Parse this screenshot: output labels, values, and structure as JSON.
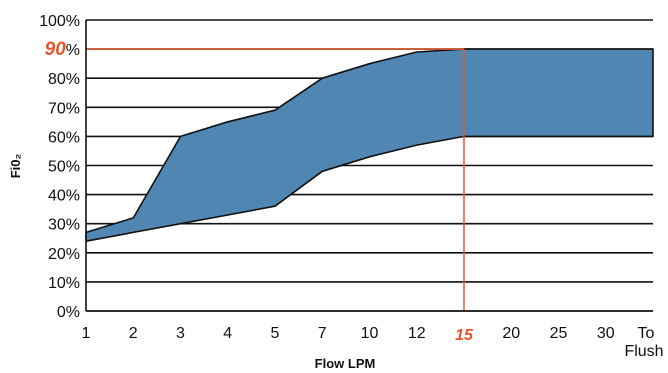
{
  "chart_data": {
    "type": "area",
    "title": "",
    "xlabel": "Flow LPM",
    "ylabel": "Fi0₂",
    "categories": [
      "1",
      "2",
      "3",
      "4",
      "5",
      "7",
      "10",
      "12",
      "15",
      "20",
      "25",
      "30",
      "To Flush"
    ],
    "x_tick_labels": [
      "1",
      "2",
      "3",
      "4",
      "5",
      "7",
      "10",
      "12",
      "15",
      "20",
      "25",
      "30",
      "To",
      "Flush"
    ],
    "y_tick_labels": [
      "0%",
      "10%",
      "20%",
      "30%",
      "40%",
      "50%",
      "60%",
      "70%",
      "80%",
      "90%",
      "100%"
    ],
    "ylim": [
      0,
      100
    ],
    "grid": true,
    "band": {
      "upper": [
        {
          "x": 1,
          "y": 27
        },
        {
          "x": 2,
          "y": 32
        },
        {
          "x": 3,
          "y": 60
        },
        {
          "x": 4,
          "y": 65
        },
        {
          "x": 5,
          "y": 69
        },
        {
          "x": 7,
          "y": 80
        },
        {
          "x": 10,
          "y": 85
        },
        {
          "x": 12,
          "y": 89
        },
        {
          "x": 15,
          "y": 90
        },
        {
          "x": 20,
          "y": 90
        },
        {
          "x": 25,
          "y": 90
        },
        {
          "x": 30,
          "y": 90
        },
        {
          "x": "To Flush",
          "y": 90
        }
      ],
      "lower": [
        {
          "x": 1,
          "y": 24
        },
        {
          "x": 2,
          "y": 27
        },
        {
          "x": 3,
          "y": 30
        },
        {
          "x": 4,
          "y": 33
        },
        {
          "x": 5,
          "y": 36
        },
        {
          "x": 7,
          "y": 48
        },
        {
          "x": 10,
          "y": 53
        },
        {
          "x": 12,
          "y": 57
        },
        {
          "x": 15,
          "y": 60
        },
        {
          "x": 20,
          "y": 60
        },
        {
          "x": 25,
          "y": 60
        },
        {
          "x": 30,
          "y": 60
        },
        {
          "x": "To Flush",
          "y": 60
        }
      ]
    },
    "highlight": {
      "x": "15",
      "y": 90,
      "y_label": "90",
      "y_suffix": "%"
    },
    "colors": {
      "band": "#4f87b2",
      "highlight": "#e8552a",
      "outline": "#111111",
      "grid": "#111111"
    }
  }
}
